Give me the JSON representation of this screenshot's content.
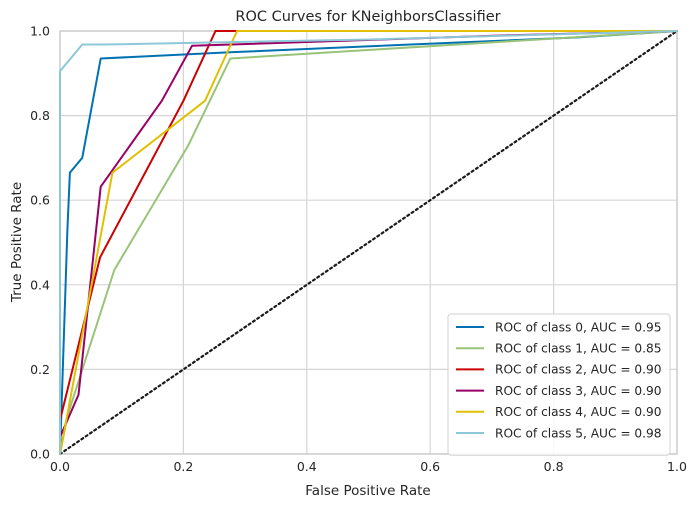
{
  "chart_data": {
    "type": "line",
    "title": "ROC Curves for KNeighborsClassifier",
    "xlabel": "False Positive Rate",
    "ylabel": "True Positive Rate",
    "xlim": [
      0,
      1
    ],
    "ylim": [
      0,
      1
    ],
    "xticks": [
      "0.0",
      "0.2",
      "0.4",
      "0.6",
      "0.8",
      "1.0"
    ],
    "yticks": [
      "0.0",
      "0.2",
      "0.4",
      "0.6",
      "0.8",
      "1.0"
    ],
    "grid": true,
    "legend_position": "bottom-right",
    "series": [
      {
        "name": "ROC of class 0, AUC = 0.95",
        "color": "#0072b2",
        "x": [
          0,
          0.0,
          0.012,
          0.016,
          0.036,
          0.066,
          0.28,
          0.84,
          1.0
        ],
        "y": [
          0,
          0.0,
          0.53,
          0.665,
          0.7,
          0.935,
          0.95,
          0.985,
          1.0
        ]
      },
      {
        "name": "ROC of class 1, AUC = 0.85",
        "color": "#98c379",
        "x": [
          0,
          0.0,
          0.012,
          0.088,
          0.208,
          0.276,
          0.72,
          1.0
        ],
        "y": [
          0,
          0.0,
          0.09,
          0.435,
          0.73,
          0.935,
          0.975,
          1.0
        ]
      },
      {
        "name": "ROC of class 2, AUC = 0.90",
        "color": "#cc0000",
        "x": [
          0,
          0.0,
          0.065,
          0.2,
          0.252,
          0.26,
          1.0
        ],
        "y": [
          0,
          0.08,
          0.465,
          0.835,
          1.0,
          1.0,
          1.0
        ],
        "_note": "class 2 curve"
      },
      {
        "name": "ROC of class 3, AUC = 0.90",
        "color": "#990066",
        "x": [
          0,
          0.0,
          0.03,
          0.066,
          0.165,
          0.214,
          0.73,
          1.0
        ],
        "y": [
          0,
          0.04,
          0.14,
          0.632,
          0.835,
          0.965,
          0.99,
          1.0
        ]
      },
      {
        "name": "ROC of class 4, AUC = 0.90",
        "color": "#e0c000",
        "x": [
          0,
          0.0,
          0.085,
          0.235,
          0.287,
          1.0
        ],
        "y": [
          0,
          0.0,
          0.665,
          0.835,
          1.0,
          1.0
        ]
      },
      {
        "name": "ROC of class 5, AUC = 0.98",
        "color": "#8dc8d8",
        "x": [
          0,
          0.0,
          0.036,
          0.07,
          0.5,
          1.0
        ],
        "y": [
          0,
          0.905,
          0.968,
          0.968,
          0.98,
          1.0
        ]
      }
    ],
    "reference_line": {
      "x": [
        0,
        1
      ],
      "y": [
        0,
        1
      ],
      "style": "dotted",
      "color": "#1a1a1a"
    }
  }
}
